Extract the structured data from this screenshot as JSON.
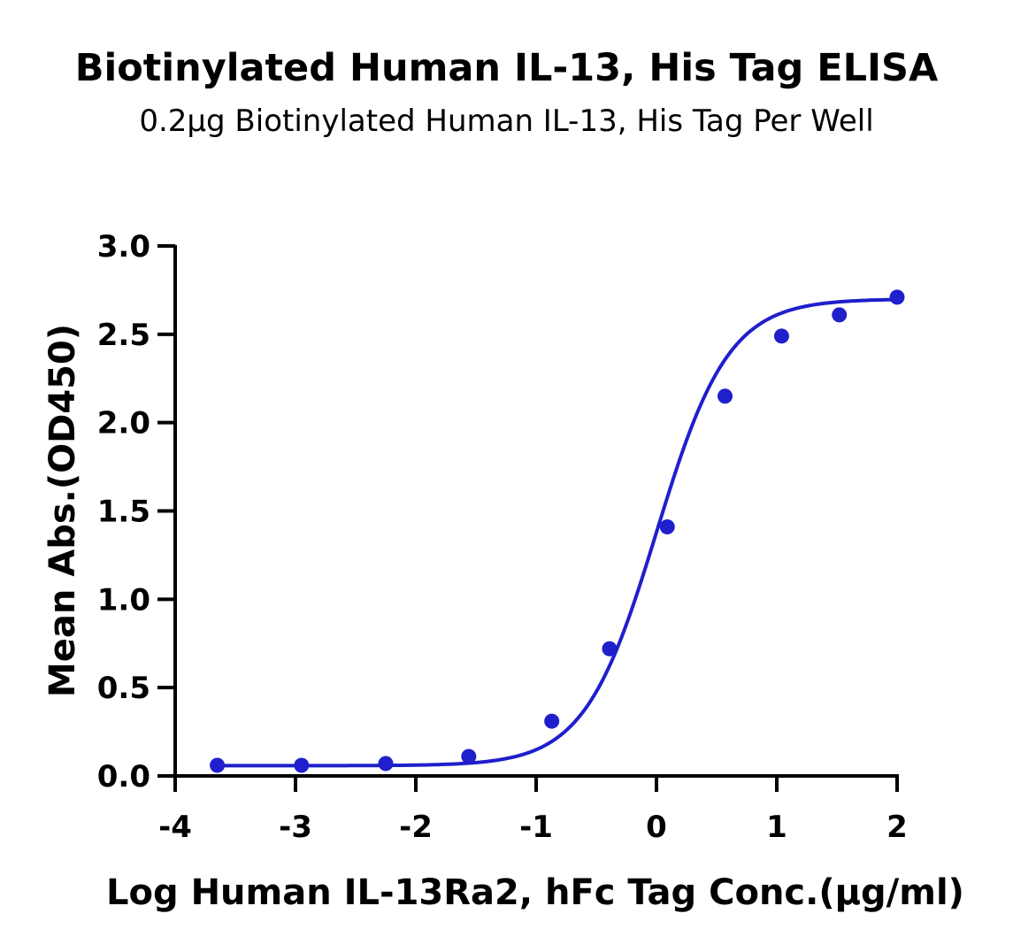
{
  "chart_data": {
    "type": "scatter",
    "title": "Biotinylated Human IL-13, His Tag ELISA",
    "subtitle": "0.2µg Biotinylated Human IL-13, His Tag Per Well",
    "xlabel": "Log Human IL-13Ra2, hFc Tag Conc.(µg/ml)",
    "ylabel": "Mean Abs.(OD450)",
    "xlim": [
      -4,
      2
    ],
    "ylim": [
      0,
      3.0
    ],
    "xticks": [
      -4,
      -3,
      -2,
      -1,
      0,
      1,
      2
    ],
    "xtick_labels": [
      "-4",
      "-3",
      "-2",
      "-1",
      "0",
      "1",
      "2"
    ],
    "yticks": [
      0,
      0.5,
      1.0,
      1.5,
      2.0,
      2.5,
      3.0
    ],
    "ytick_labels": [
      "0.0",
      "0.5",
      "1.0",
      "1.5",
      "2.0",
      "2.5",
      "3.0"
    ],
    "grid": false,
    "series": [
      {
        "color": "#1f1fcc",
        "x": [
          -3.65,
          -2.95,
          -2.25,
          -1.56,
          -0.87,
          -0.39,
          0.09,
          0.57,
          1.04,
          1.52,
          2.0
        ],
        "y": [
          0.06,
          0.06,
          0.07,
          0.11,
          0.31,
          0.72,
          1.41,
          2.15,
          2.49,
          2.61,
          2.71
        ],
        "fit": {
          "bottom": 0.058,
          "top": 2.7,
          "logEC50": 0.0,
          "hill": 1.45
        }
      }
    ]
  }
}
